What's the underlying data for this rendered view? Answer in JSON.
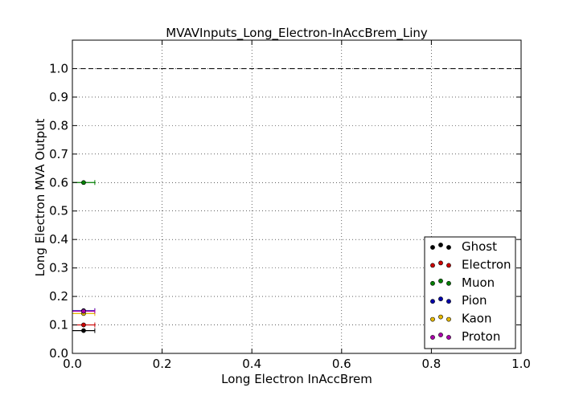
{
  "chart_data": {
    "type": "scatter",
    "title": "MVAVInputs_Long_Electron-InAccBrem_Liny",
    "xlabel": "Long Electron InAccBrem",
    "ylabel": "Long Electron MVA Output",
    "xlim": [
      0.0,
      1.0
    ],
    "ylim": [
      0.0,
      1.1
    ],
    "x_ticks": [
      "0.0",
      "0.2",
      "0.4",
      "0.6",
      "0.8",
      "1.0"
    ],
    "y_ticks": [
      "0.0",
      "0.1",
      "0.2",
      "0.3",
      "0.4",
      "0.5",
      "0.6",
      "0.7",
      "0.8",
      "0.9",
      "1.0"
    ],
    "grid": true,
    "reference_line_y": 1.0,
    "legend_position": "lower-right",
    "series": [
      {
        "name": "Ghost",
        "color": "#000000",
        "points": [
          {
            "x": 0.025,
            "y": 0.08,
            "xerr": 0.025
          }
        ]
      },
      {
        "name": "Electron",
        "color": "#cc0000",
        "points": [
          {
            "x": 0.025,
            "y": 0.1,
            "xerr": 0.025
          }
        ]
      },
      {
        "name": "Muon",
        "color": "#008000",
        "points": [
          {
            "x": 0.025,
            "y": 0.6,
            "xerr": 0.025
          }
        ]
      },
      {
        "name": "Pion",
        "color": "#0000aa",
        "points": [
          {
            "x": 0.025,
            "y": 0.15,
            "xerr": 0.025
          }
        ]
      },
      {
        "name": "Kaon",
        "color": "#e5b800",
        "points": [
          {
            "x": 0.025,
            "y": 0.14,
            "xerr": 0.025
          }
        ]
      },
      {
        "name": "Proton",
        "color": "#aa00aa",
        "points": [
          {
            "x": 0.025,
            "y": 0.148,
            "xerr": 0.025
          }
        ]
      }
    ]
  }
}
